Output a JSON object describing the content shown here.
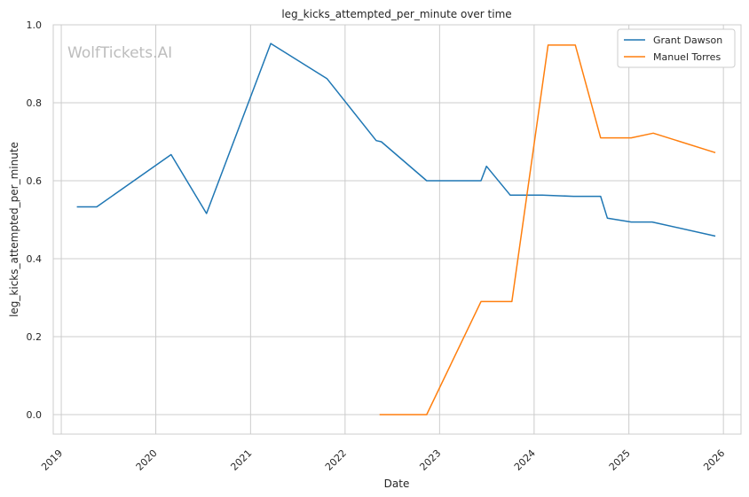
{
  "chart_data": {
    "type": "line",
    "title": "leg_kicks_attempted_per_minute over time",
    "xlabel": "Date",
    "ylabel": "leg_kicks_attempted_per_minute",
    "xlim": [
      "2018-12-01",
      "2026-03-10"
    ],
    "ylim": [
      -0.05,
      1.0
    ],
    "x_ticks": [
      "2019",
      "2020",
      "2021",
      "2022",
      "2023",
      "2024",
      "2025",
      "2026"
    ],
    "y_ticks": [
      "0.0",
      "0.2",
      "0.4",
      "0.6",
      "0.8",
      "1.0"
    ],
    "grid": true,
    "legend_position": "top-right",
    "watermark": "WolfTickets.AI",
    "series": [
      {
        "name": "Grant Dawson",
        "color": "#1f77b4",
        "points": [
          [
            "2019-03-02",
            0.533
          ],
          [
            "2019-05-18",
            0.533
          ],
          [
            "2020-02-29",
            0.667
          ],
          [
            "2020-07-15",
            0.516
          ],
          [
            "2021-03-20",
            0.952
          ],
          [
            "2021-10-23",
            0.862
          ],
          [
            "2022-05-01",
            0.703
          ],
          [
            "2022-05-21",
            0.7
          ],
          [
            "2022-11-12",
            0.6
          ],
          [
            "2023-06-10",
            0.6
          ],
          [
            "2023-07-01",
            0.637
          ],
          [
            "2023-10-01",
            0.563
          ],
          [
            "2024-02-01",
            0.563
          ],
          [
            "2024-06-01",
            0.56
          ],
          [
            "2024-09-14",
            0.56
          ],
          [
            "2024-10-10",
            0.504
          ],
          [
            "2025-01-10",
            0.494
          ],
          [
            "2025-04-01",
            0.494
          ],
          [
            "2025-12-01",
            0.458
          ]
        ]
      },
      {
        "name": "Manuel Torres",
        "color": "#ff7f0e",
        "points": [
          [
            "2022-05-14",
            0.0
          ],
          [
            "2022-11-12",
            0.0
          ],
          [
            "2023-06-10",
            0.29
          ],
          [
            "2023-10-07",
            0.29
          ],
          [
            "2024-02-24",
            0.948
          ],
          [
            "2024-06-08",
            0.948
          ],
          [
            "2024-09-14",
            0.71
          ],
          [
            "2025-01-10",
            0.71
          ],
          [
            "2025-04-05",
            0.722
          ],
          [
            "2025-12-01",
            0.672
          ]
        ]
      }
    ]
  }
}
